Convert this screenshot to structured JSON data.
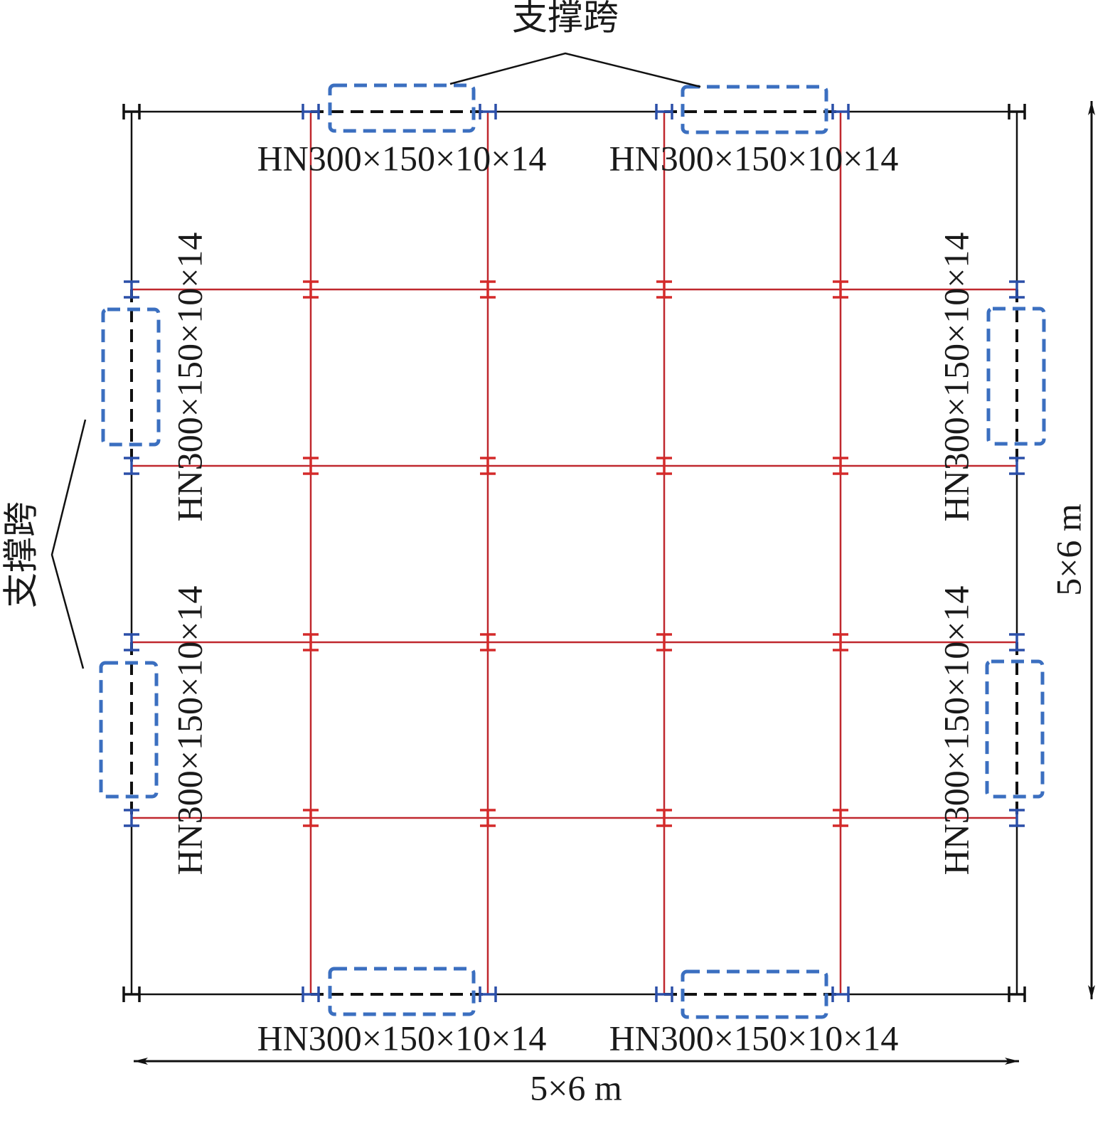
{
  "annotations": {
    "top": "支撑跨",
    "left": "支撑跨"
  },
  "member_labels": {
    "top": [
      "HN300×150×10×14",
      "HN300×150×10×14"
    ],
    "bottom": [
      "HN300×150×10×14",
      "HN300×150×10×14"
    ],
    "left": [
      "HN300×150×10×14",
      "HN300×150×10×14"
    ],
    "right": [
      "HN300×150×10×14",
      "HN300×150×10×14"
    ]
  },
  "dimensions": {
    "width": "5×6 m",
    "height": "5×6 m"
  }
}
